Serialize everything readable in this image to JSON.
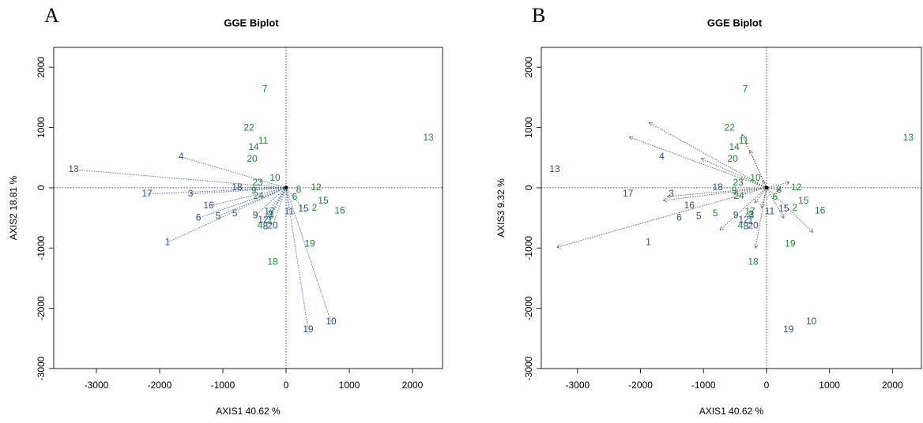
{
  "chart_data": [
    {
      "type": "biplot",
      "panel_label": "A",
      "title": "GGE Biplot",
      "xlabel": "AXIS1 40.62 %",
      "ylabel": "AXIS2 18.81 %",
      "xlim": [
        -3675,
        2475
      ],
      "ylim": [
        -3000,
        2330
      ],
      "xticks": [
        -3000,
        -2000,
        -1000,
        0,
        1000,
        2000
      ],
      "yticks": [
        -3000,
        -2000,
        -1000,
        0,
        1000,
        2000
      ],
      "series": [
        {
          "color": "#1a8a2e",
          "arrows": false,
          "labels": [
            "1",
            "2",
            "3",
            "4",
            "5",
            "6",
            "7",
            "8",
            "9",
            "10",
            "11",
            "12",
            "13",
            "14",
            "15",
            "16",
            "17",
            "18",
            "19",
            "20",
            "22",
            "23",
            "24"
          ],
          "x": [
            -250,
            450,
            -237,
            -412,
            -812,
            137,
            -337,
            200,
            -512,
            -175,
            -362,
            475,
            2250,
            -512,
            587,
            850,
            -262,
            -212,
            375,
            -537,
            -587,
            -450,
            -437
          ],
          "y": [
            -560,
            -342,
            -461,
            -632,
            -434,
            -158,
            1632,
            -39,
            -50,
            158,
            776,
            0,
            829,
            671,
            -224,
            -382,
            -395,
            -1237,
            -934,
            474,
            987,
            79,
            -145
          ]
        },
        {
          "color": "#2a4d9c",
          "arrows": true,
          "labels": [
            "1",
            "2",
            "3",
            "4",
            "5",
            "6",
            "8",
            "9",
            "10",
            "11",
            "12",
            "13",
            "15",
            "16",
            "17",
            "18",
            "19",
            "20"
          ],
          "x": [
            -1875,
            -250,
            -1512,
            -1662,
            -1075,
            -1387,
            -325,
            -487,
            712,
            50,
            -362,
            -3362,
            275,
            -1225,
            -2200,
            -775,
            350,
            -212
          ],
          "y": [
            -908,
            -447,
            -105,
            513,
            -474,
            -500,
            -645,
            -461,
            -2224,
            -395,
            -539,
            303,
            -355,
            -303,
            -105,
            0,
            -2355,
            -632
          ]
        }
      ]
    },
    {
      "type": "biplot",
      "panel_label": "B",
      "title": "GGE Biplot",
      "xlabel": "AXIS1 40.62 %",
      "ylabel": "AXIS3 9.32 %",
      "xlim": [
        -3575,
        2460
      ],
      "ylim": [
        -3000,
        2330
      ],
      "xticks": [
        -3000,
        -2000,
        -1000,
        0,
        1000,
        2000
      ],
      "yticks": [
        -3000,
        -2000,
        -1000,
        0,
        1000,
        2000
      ],
      "series": [
        {
          "color": "#1a8a2e",
          "arrows": false,
          "labels": [
            "1",
            "2",
            "3",
            "4",
            "5",
            "6",
            "7",
            "8",
            "9",
            "10",
            "11",
            "12",
            "13",
            "14",
            "15",
            "16",
            "17",
            "18",
            "19",
            "20",
            "22",
            "23",
            "24"
          ],
          "x": [
            -250,
            450,
            -237,
            -412,
            -812,
            137,
            -337,
            200,
            -512,
            -175,
            -362,
            475,
            2250,
            -512,
            587,
            850,
            -262,
            -212,
            375,
            -537,
            -587,
            -450,
            -437
          ],
          "y": [
            -560,
            -342,
            -461,
            -632,
            -434,
            -158,
            1632,
            -39,
            -50,
            158,
            776,
            0,
            829,
            671,
            -224,
            -382,
            -395,
            -1237,
            -934,
            474,
            987,
            79,
            -145
          ]
        },
        {
          "color": "#2a4d9c",
          "arrows": false,
          "labels": [
            "1",
            "2",
            "3",
            "4",
            "5",
            "6",
            "8",
            "9",
            "10",
            "11",
            "12",
            "13",
            "15",
            "16",
            "17",
            "18",
            "19",
            "20"
          ],
          "x": [
            -1875,
            -250,
            -1512,
            -1662,
            -1075,
            -1387,
            -325,
            -487,
            712,
            50,
            -362,
            -3362,
            275,
            -1225,
            -2200,
            -775,
            350,
            -212
          ],
          "y": [
            -908,
            -447,
            -105,
            513,
            -474,
            -500,
            -645,
            -461,
            -2224,
            -395,
            -539,
            303,
            -355,
            -303,
            -105,
            0,
            -2355,
            -632
          ]
        }
      ],
      "vectors": {
        "color": "#2a4d9c",
        "x": [
          -3325,
          -1862,
          -2175,
          -1037,
          -387,
          -262,
          -62,
          362,
          -1575,
          -1637,
          -737,
          -175,
          737,
          275,
          -187,
          212,
          -75,
          -512
        ],
        "y": [
          -987,
          1079,
          842,
          487,
          882,
          618,
          118,
          92,
          -145,
          -211,
          -697,
          -1000,
          -737,
          -500,
          -250,
          -39,
          -329,
          -105
        ]
      }
    }
  ]
}
